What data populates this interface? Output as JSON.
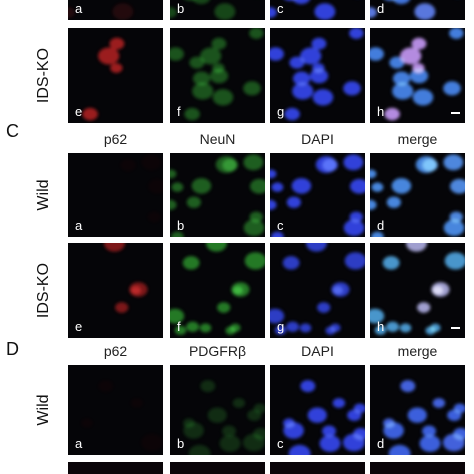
{
  "sections": [
    {
      "rows": [
        {
          "letters": [
            "a",
            "b",
            "c",
            "d"
          ]
        },
        {
          "label": "IDS-KO",
          "letters": [
            "e",
            "f",
            "g",
            "h"
          ]
        }
      ]
    },
    {
      "label": "C",
      "headers": [
        "p62",
        "NeuN",
        "DAPI",
        "merge"
      ],
      "rows": [
        {
          "label": "Wild",
          "letters": [
            "a",
            "b",
            "c",
            "d"
          ]
        },
        {
          "label": "IDS-KO",
          "letters": [
            "e",
            "f",
            "g",
            "h"
          ]
        }
      ]
    },
    {
      "label": "D",
      "headers": [
        "p62",
        "PDGFRβ",
        "DAPI",
        "merge"
      ],
      "rows": [
        {
          "label": "Wild",
          "letters": [
            "a",
            "b",
            "c",
            "d"
          ]
        }
      ]
    }
  ]
}
